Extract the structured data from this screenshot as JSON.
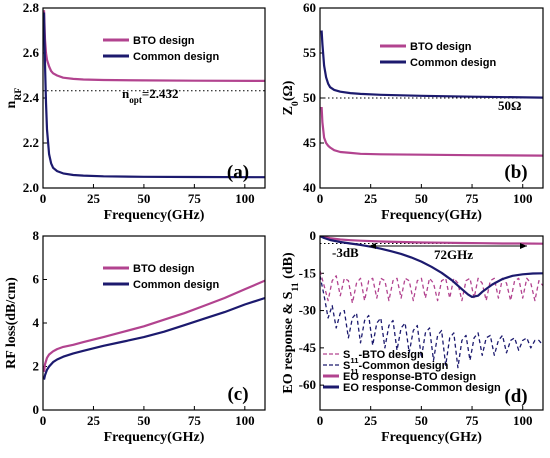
{
  "chart_data": [
    {
      "type": "line",
      "panel_label": "(a)",
      "xlabel": "Frequency(GHz)",
      "ylabel": "n_RF",
      "ylabel_main": "n",
      "ylabel_sub": "RF",
      "xlim": [
        0,
        110
      ],
      "ylim": [
        2.0,
        2.8
      ],
      "xticks": [
        0,
        25,
        50,
        75,
        100
      ],
      "yticks": [
        2.0,
        2.2,
        2.4,
        2.6,
        2.8
      ],
      "ytick_labels": [
        "2.0",
        "2.2",
        "2.4",
        "2.6",
        "2.8"
      ],
      "series": [
        {
          "name": "BTO design",
          "color": "#b2438f",
          "style": "solid",
          "x": [
            0.5,
            1,
            1.5,
            2,
            3,
            4,
            5,
            7,
            10,
            15,
            20,
            30,
            50,
            75,
            110
          ],
          "y": [
            2.79,
            2.66,
            2.6,
            2.57,
            2.54,
            2.52,
            2.51,
            2.5,
            2.49,
            2.485,
            2.482,
            2.48,
            2.478,
            2.477,
            2.476
          ]
        },
        {
          "name": "Common design",
          "color": "#1c1a6e",
          "style": "solid",
          "x": [
            0.5,
            1,
            1.5,
            2,
            3,
            4,
            5,
            7,
            10,
            15,
            20,
            30,
            50,
            75,
            110
          ],
          "y": [
            2.78,
            2.55,
            2.38,
            2.26,
            2.15,
            2.11,
            2.09,
            2.075,
            2.065,
            2.058,
            2.055,
            2.052,
            2.05,
            2.049,
            2.048
          ]
        }
      ],
      "hline": {
        "y": 2.432,
        "style": "dotted"
      },
      "annotations": [
        {
          "text_main": "n",
          "text_sub": "opt",
          "text_rest": "=2.432"
        }
      ],
      "legend": "top-right"
    },
    {
      "type": "line",
      "panel_label": "(b)",
      "xlabel": "Frequency(GHz)",
      "ylabel": "Z0(Ω)",
      "ylabel_main": "Z",
      "ylabel_sub": "0",
      "ylabel_rest": "(Ω)",
      "xlim": [
        0,
        110
      ],
      "ylim": [
        40,
        60
      ],
      "xticks": [
        0,
        25,
        50,
        75,
        100
      ],
      "yticks": [
        40,
        45,
        50,
        55,
        60
      ],
      "ytick_labels": [
        "40",
        "45",
        "50",
        "55",
        "60"
      ],
      "series": [
        {
          "name": "BTO design",
          "color": "#b2438f",
          "style": "solid",
          "x": [
            0.8,
            1.2,
            2,
            3,
            4,
            5,
            7,
            10,
            15,
            20,
            30,
            50,
            75,
            110
          ],
          "y": [
            49,
            47.3,
            45.6,
            45,
            44.7,
            44.5,
            44.2,
            44.0,
            43.9,
            43.8,
            43.75,
            43.7,
            43.65,
            43.6
          ]
        },
        {
          "name": "Common design",
          "color": "#1c1a6e",
          "style": "solid",
          "x": [
            0.8,
            1.2,
            2,
            3,
            4,
            5,
            7,
            10,
            15,
            20,
            30,
            50,
            75,
            110
          ],
          "y": [
            57.5,
            56,
            53.6,
            52.3,
            51.6,
            51.2,
            50.9,
            50.7,
            50.55,
            50.45,
            50.35,
            50.25,
            50.15,
            50.05
          ]
        }
      ],
      "hline": {
        "y": 50,
        "style": "dotted"
      },
      "annotations": [
        {
          "text": "50Ω"
        }
      ],
      "legend": "top-right"
    },
    {
      "type": "line",
      "panel_label": "(c)",
      "xlabel": "Frequency(GHz)",
      "ylabel": "RF loss(dB/cm)",
      "xlim": [
        0,
        110
      ],
      "ylim": [
        0,
        8
      ],
      "xticks": [
        0,
        25,
        50,
        75,
        100
      ],
      "yticks": [
        0,
        2,
        4,
        6,
        8
      ],
      "ytick_labels": [
        "0",
        "2",
        "4",
        "6",
        "8"
      ],
      "series": [
        {
          "name": "BTO design",
          "color": "#b2438f",
          "style": "solid",
          "x": [
            0.5,
            1,
            2,
            3,
            5,
            7,
            10,
            15,
            20,
            30,
            40,
            50,
            60,
            70,
            80,
            90,
            100,
            110
          ],
          "y": [
            1.75,
            2.1,
            2.4,
            2.55,
            2.7,
            2.8,
            2.9,
            3.0,
            3.12,
            3.35,
            3.6,
            3.85,
            4.15,
            4.45,
            4.8,
            5.15,
            5.55,
            5.95
          ]
        },
        {
          "name": "Common design",
          "color": "#1c1a6e",
          "style": "solid",
          "x": [
            0.5,
            1,
            2,
            3,
            5,
            7,
            10,
            15,
            20,
            30,
            40,
            50,
            60,
            70,
            80,
            90,
            100,
            110
          ],
          "y": [
            1.4,
            1.6,
            1.85,
            2.0,
            2.2,
            2.32,
            2.45,
            2.6,
            2.72,
            2.95,
            3.15,
            3.35,
            3.6,
            3.9,
            4.2,
            4.5,
            4.85,
            5.15
          ]
        }
      ],
      "legend": "top-left"
    },
    {
      "type": "line",
      "panel_label": "(d)",
      "xlabel": "Frequency(GHz)",
      "ylabel": "EO response & S11 (dB)",
      "ylabel_main": "EO response & S",
      "ylabel_sub": "11",
      "ylabel_rest": " (dB)",
      "xlim": [
        0,
        110
      ],
      "ylim": [
        -70,
        0
      ],
      "xticks": [
        0,
        25,
        50,
        75,
        100
      ],
      "yticks": [
        0,
        -15,
        -30,
        -45,
        -60
      ],
      "ytick_labels": [
        "0",
        "-15",
        "-30",
        "-45",
        "-60"
      ],
      "series": [
        {
          "name": "S11-BTO design",
          "name_main": "S",
          "name_sub": "11",
          "name_rest": "-BTO design",
          "color": "#b2438f",
          "style": "dashed",
          "x": [
            0,
            2,
            4,
            6,
            8,
            10,
            12,
            14,
            16,
            18,
            20,
            22,
            24,
            26,
            28,
            30,
            32,
            34,
            36,
            38,
            40,
            42,
            44,
            46,
            48,
            50,
            52,
            54,
            56,
            58,
            60,
            62,
            64,
            66,
            68,
            70,
            72,
            74,
            76,
            78,
            80,
            82,
            84,
            86,
            88,
            90,
            92,
            94,
            96,
            98,
            100,
            102,
            104,
            106,
            108,
            110
          ],
          "y": [
            -14,
            -20,
            -26,
            -18,
            -16,
            -24,
            -17,
            -18,
            -27,
            -19,
            -17,
            -26,
            -18,
            -17,
            -25,
            -17,
            -18,
            -26,
            -18,
            -17,
            -25,
            -17,
            -18,
            -26,
            -18,
            -17,
            -25,
            -17,
            -19,
            -26,
            -18,
            -17,
            -25,
            -17,
            -19,
            -26,
            -18,
            -17,
            -25,
            -17,
            -19,
            -26,
            -18,
            -17,
            -25,
            -17,
            -19,
            -26,
            -18,
            -17,
            -25,
            -17,
            -19,
            -26,
            -18,
            -20
          ]
        },
        {
          "name": "S11-Common design",
          "name_main": "S",
          "name_sub": "11",
          "name_rest": "-Common design",
          "color": "#1c1a6e",
          "style": "dashed",
          "x": [
            0,
            2,
            4,
            6,
            8,
            10,
            12,
            14,
            16,
            18,
            20,
            22,
            24,
            26,
            28,
            30,
            32,
            34,
            36,
            38,
            40,
            42,
            44,
            46,
            48,
            50,
            52,
            54,
            56,
            58,
            60,
            62,
            64,
            66,
            68,
            70,
            72,
            74,
            76,
            78,
            80,
            82,
            84,
            86,
            88,
            90,
            92,
            94,
            96,
            98,
            100,
            102,
            104,
            106,
            108,
            110
          ],
          "y": [
            -16,
            -24,
            -33,
            -28,
            -37,
            -31,
            -30,
            -41,
            -33,
            -31,
            -43,
            -34,
            -32,
            -44,
            -35,
            -33,
            -45,
            -36,
            -34,
            -46,
            -37,
            -35,
            -47,
            -38,
            -36,
            -49,
            -39,
            -37,
            -50,
            -40,
            -38,
            -52,
            -41,
            -39,
            -53,
            -42,
            -40,
            -50,
            -41,
            -39,
            -48,
            -41,
            -40,
            -48,
            -42,
            -40,
            -47,
            -42,
            -41,
            -46,
            -42,
            -41,
            -45,
            -42,
            -42,
            -44
          ]
        },
        {
          "name": "EO response-BTO design",
          "color": "#b2438f",
          "style": "solid",
          "x": [
            0,
            2,
            5,
            10,
            15,
            20,
            30,
            40,
            50,
            60,
            70,
            80,
            90,
            100,
            110
          ],
          "y": [
            0,
            -0.4,
            -0.9,
            -1.4,
            -1.7,
            -1.9,
            -2.2,
            -2.4,
            -2.6,
            -2.7,
            -2.8,
            -2.9,
            -3.0,
            -3.0,
            -3.1
          ]
        },
        {
          "name": "EO response-Common design",
          "color": "#1c1a6e",
          "style": "solid",
          "x": [
            0,
            2,
            5,
            10,
            15,
            20,
            25,
            30,
            35,
            40,
            45,
            50,
            55,
            60,
            65,
            70,
            73,
            75,
            78,
            80,
            85,
            90,
            95,
            100,
            105,
            110
          ],
          "y": [
            0,
            -0.8,
            -1.6,
            -2.4,
            -3.0,
            -3.6,
            -4.3,
            -5.1,
            -6.1,
            -7.2,
            -8.6,
            -10.3,
            -12.4,
            -14.8,
            -17.8,
            -21.4,
            -23.5,
            -24.5,
            -24.0,
            -22.5,
            -19.5,
            -17.3,
            -16.0,
            -15.4,
            -15.1,
            -15.0
          ]
        }
      ],
      "hline": {
        "y": -3,
        "style": "dotted"
      },
      "annotations": [
        {
          "text": "-3dB"
        },
        {
          "text": "72GHz"
        }
      ],
      "legend": "bottom-left"
    }
  ]
}
